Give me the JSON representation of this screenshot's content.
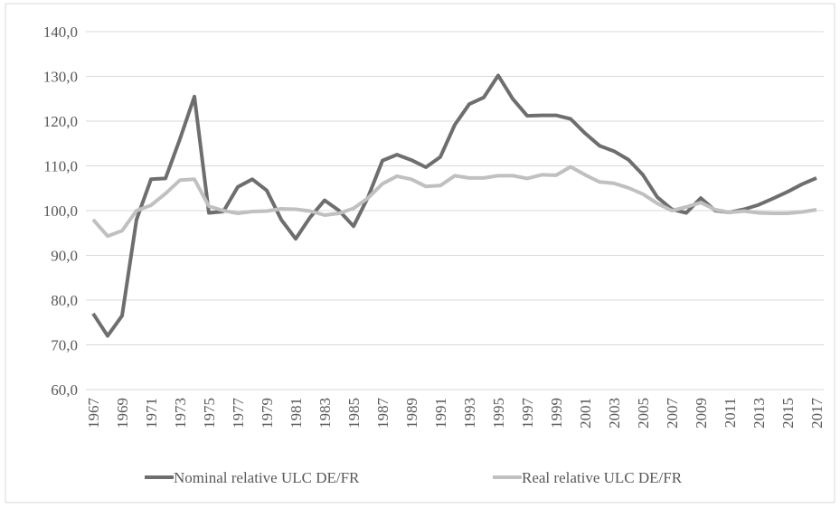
{
  "chart_data": {
    "type": "line",
    "x": [
      1967,
      1968,
      1969,
      1970,
      1971,
      1972,
      1973,
      1974,
      1975,
      1976,
      1977,
      1978,
      1979,
      1980,
      1981,
      1982,
      1983,
      1984,
      1985,
      1986,
      1987,
      1988,
      1989,
      1990,
      1991,
      1992,
      1993,
      1994,
      1995,
      1996,
      1997,
      1998,
      1999,
      2000,
      2001,
      2002,
      2003,
      2004,
      2005,
      2006,
      2007,
      2008,
      2009,
      2010,
      2011,
      2012,
      2013,
      2014,
      2015,
      2016,
      2017
    ],
    "xlim": [
      1967,
      2017
    ],
    "xticks": [
      1967,
      1969,
      1971,
      1973,
      1975,
      1977,
      1979,
      1981,
      1983,
      1985,
      1987,
      1989,
      1991,
      1993,
      1995,
      1997,
      1999,
      2001,
      2003,
      2005,
      2007,
      2009,
      2011,
      2013,
      2015,
      2017
    ],
    "ylim": [
      60,
      140
    ],
    "yticks": [
      {
        "value": 60,
        "label": "60,0"
      },
      {
        "value": 70,
        "label": "70,0"
      },
      {
        "value": 80,
        "label": "80,0"
      },
      {
        "value": 90,
        "label": "90,0"
      },
      {
        "value": 100,
        "label": "100,0"
      },
      {
        "value": 110,
        "label": "110,0"
      },
      {
        "value": 120,
        "label": "120,0"
      },
      {
        "value": 130,
        "label": "130,0"
      },
      {
        "value": 140,
        "label": "140,0"
      }
    ],
    "grid": true,
    "legend": "bottom",
    "series": [
      {
        "name": "Nominal relative ULC DE/FR",
        "color": "#6e6e6e",
        "values": [
          77,
          72,
          76.5,
          98,
          107,
          107.2,
          116,
          125.5,
          99.5,
          99.8,
          105.3,
          107,
          104.5,
          98,
          93.7,
          98.5,
          102.3,
          100,
          96.5,
          103,
          111.2,
          112.5,
          111.3,
          109.7,
          112,
          119.2,
          123.8,
          125.3,
          130.2,
          125,
          121.2,
          121.3,
          121.3,
          120.5,
          117.3,
          114.5,
          113.3,
          111.4,
          108,
          103,
          100.3,
          99.5,
          102.8,
          100,
          99.6,
          100.3,
          101.3,
          102.7,
          104.2,
          105.9,
          107.3
        ]
      },
      {
        "name": "Real relative ULC DE/FR",
        "color": "#c0c0c0",
        "values": [
          98,
          94.3,
          95.5,
          100,
          101.2,
          103.8,
          106.8,
          107,
          101,
          100,
          99.4,
          99.8,
          99.9,
          100.4,
          100.3,
          99.9,
          99,
          99.4,
          100.5,
          102.8,
          106,
          107.7,
          107,
          105.4,
          105.6,
          107.8,
          107.3,
          107.3,
          107.8,
          107.8,
          107.2,
          108,
          107.9,
          109.8,
          108,
          106.4,
          106.1,
          105.1,
          103.7,
          101.6,
          100,
          100.8,
          101.8,
          100.2,
          99.6,
          99.9,
          99.5,
          99.4,
          99.4,
          99.7,
          100.2
        ]
      }
    ]
  }
}
